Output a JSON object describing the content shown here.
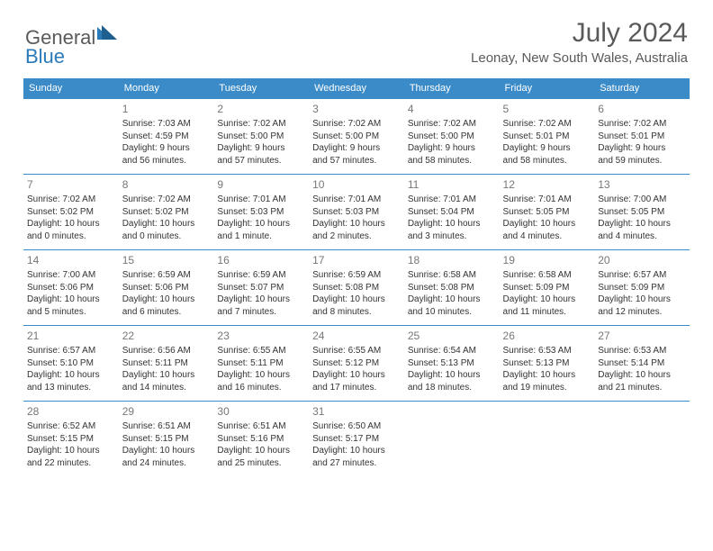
{
  "brand": {
    "text_gray": "General",
    "text_blue": "Blue",
    "colors": {
      "gray": "#5a5a5a",
      "blue": "#2a7ab8",
      "header_bg": "#3b8bc9"
    }
  },
  "title": {
    "month": "July 2024",
    "location": "Leonay, New South Wales, Australia"
  },
  "day_headers": [
    "Sunday",
    "Monday",
    "Tuesday",
    "Wednesday",
    "Thursday",
    "Friday",
    "Saturday"
  ],
  "weeks": [
    [
      null,
      {
        "n": "1",
        "sr": "Sunrise: 7:03 AM",
        "ss": "Sunset: 4:59 PM",
        "d1": "Daylight: 9 hours",
        "d2": "and 56 minutes."
      },
      {
        "n": "2",
        "sr": "Sunrise: 7:02 AM",
        "ss": "Sunset: 5:00 PM",
        "d1": "Daylight: 9 hours",
        "d2": "and 57 minutes."
      },
      {
        "n": "3",
        "sr": "Sunrise: 7:02 AM",
        "ss": "Sunset: 5:00 PM",
        "d1": "Daylight: 9 hours",
        "d2": "and 57 minutes."
      },
      {
        "n": "4",
        "sr": "Sunrise: 7:02 AM",
        "ss": "Sunset: 5:00 PM",
        "d1": "Daylight: 9 hours",
        "d2": "and 58 minutes."
      },
      {
        "n": "5",
        "sr": "Sunrise: 7:02 AM",
        "ss": "Sunset: 5:01 PM",
        "d1": "Daylight: 9 hours",
        "d2": "and 58 minutes."
      },
      {
        "n": "6",
        "sr": "Sunrise: 7:02 AM",
        "ss": "Sunset: 5:01 PM",
        "d1": "Daylight: 9 hours",
        "d2": "and 59 minutes."
      }
    ],
    [
      {
        "n": "7",
        "sr": "Sunrise: 7:02 AM",
        "ss": "Sunset: 5:02 PM",
        "d1": "Daylight: 10 hours",
        "d2": "and 0 minutes."
      },
      {
        "n": "8",
        "sr": "Sunrise: 7:02 AM",
        "ss": "Sunset: 5:02 PM",
        "d1": "Daylight: 10 hours",
        "d2": "and 0 minutes."
      },
      {
        "n": "9",
        "sr": "Sunrise: 7:01 AM",
        "ss": "Sunset: 5:03 PM",
        "d1": "Daylight: 10 hours",
        "d2": "and 1 minute."
      },
      {
        "n": "10",
        "sr": "Sunrise: 7:01 AM",
        "ss": "Sunset: 5:03 PM",
        "d1": "Daylight: 10 hours",
        "d2": "and 2 minutes."
      },
      {
        "n": "11",
        "sr": "Sunrise: 7:01 AM",
        "ss": "Sunset: 5:04 PM",
        "d1": "Daylight: 10 hours",
        "d2": "and 3 minutes."
      },
      {
        "n": "12",
        "sr": "Sunrise: 7:01 AM",
        "ss": "Sunset: 5:05 PM",
        "d1": "Daylight: 10 hours",
        "d2": "and 4 minutes."
      },
      {
        "n": "13",
        "sr": "Sunrise: 7:00 AM",
        "ss": "Sunset: 5:05 PM",
        "d1": "Daylight: 10 hours",
        "d2": "and 4 minutes."
      }
    ],
    [
      {
        "n": "14",
        "sr": "Sunrise: 7:00 AM",
        "ss": "Sunset: 5:06 PM",
        "d1": "Daylight: 10 hours",
        "d2": "and 5 minutes."
      },
      {
        "n": "15",
        "sr": "Sunrise: 6:59 AM",
        "ss": "Sunset: 5:06 PM",
        "d1": "Daylight: 10 hours",
        "d2": "and 6 minutes."
      },
      {
        "n": "16",
        "sr": "Sunrise: 6:59 AM",
        "ss": "Sunset: 5:07 PM",
        "d1": "Daylight: 10 hours",
        "d2": "and 7 minutes."
      },
      {
        "n": "17",
        "sr": "Sunrise: 6:59 AM",
        "ss": "Sunset: 5:08 PM",
        "d1": "Daylight: 10 hours",
        "d2": "and 8 minutes."
      },
      {
        "n": "18",
        "sr": "Sunrise: 6:58 AM",
        "ss": "Sunset: 5:08 PM",
        "d1": "Daylight: 10 hours",
        "d2": "and 10 minutes."
      },
      {
        "n": "19",
        "sr": "Sunrise: 6:58 AM",
        "ss": "Sunset: 5:09 PM",
        "d1": "Daylight: 10 hours",
        "d2": "and 11 minutes."
      },
      {
        "n": "20",
        "sr": "Sunrise: 6:57 AM",
        "ss": "Sunset: 5:09 PM",
        "d1": "Daylight: 10 hours",
        "d2": "and 12 minutes."
      }
    ],
    [
      {
        "n": "21",
        "sr": "Sunrise: 6:57 AM",
        "ss": "Sunset: 5:10 PM",
        "d1": "Daylight: 10 hours",
        "d2": "and 13 minutes."
      },
      {
        "n": "22",
        "sr": "Sunrise: 6:56 AM",
        "ss": "Sunset: 5:11 PM",
        "d1": "Daylight: 10 hours",
        "d2": "and 14 minutes."
      },
      {
        "n": "23",
        "sr": "Sunrise: 6:55 AM",
        "ss": "Sunset: 5:11 PM",
        "d1": "Daylight: 10 hours",
        "d2": "and 16 minutes."
      },
      {
        "n": "24",
        "sr": "Sunrise: 6:55 AM",
        "ss": "Sunset: 5:12 PM",
        "d1": "Daylight: 10 hours",
        "d2": "and 17 minutes."
      },
      {
        "n": "25",
        "sr": "Sunrise: 6:54 AM",
        "ss": "Sunset: 5:13 PM",
        "d1": "Daylight: 10 hours",
        "d2": "and 18 minutes."
      },
      {
        "n": "26",
        "sr": "Sunrise: 6:53 AM",
        "ss": "Sunset: 5:13 PM",
        "d1": "Daylight: 10 hours",
        "d2": "and 19 minutes."
      },
      {
        "n": "27",
        "sr": "Sunrise: 6:53 AM",
        "ss": "Sunset: 5:14 PM",
        "d1": "Daylight: 10 hours",
        "d2": "and 21 minutes."
      }
    ],
    [
      {
        "n": "28",
        "sr": "Sunrise: 6:52 AM",
        "ss": "Sunset: 5:15 PM",
        "d1": "Daylight: 10 hours",
        "d2": "and 22 minutes."
      },
      {
        "n": "29",
        "sr": "Sunrise: 6:51 AM",
        "ss": "Sunset: 5:15 PM",
        "d1": "Daylight: 10 hours",
        "d2": "and 24 minutes."
      },
      {
        "n": "30",
        "sr": "Sunrise: 6:51 AM",
        "ss": "Sunset: 5:16 PM",
        "d1": "Daylight: 10 hours",
        "d2": "and 25 minutes."
      },
      {
        "n": "31",
        "sr": "Sunrise: 6:50 AM",
        "ss": "Sunset: 5:17 PM",
        "d1": "Daylight: 10 hours",
        "d2": "and 27 minutes."
      },
      null,
      null,
      null
    ]
  ]
}
